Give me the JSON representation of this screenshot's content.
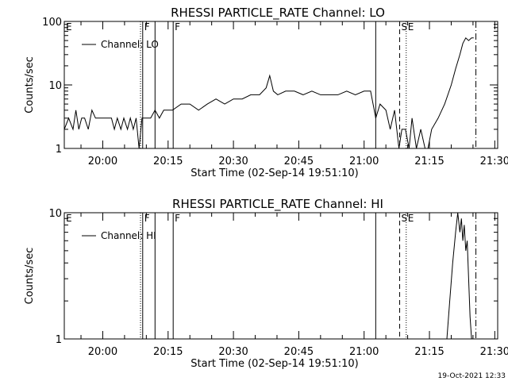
{
  "chart_data": [
    {
      "type": "line",
      "title": "RHESSI PARTICLE_RATE Channel: LO",
      "xlabel": "Start Time (02-Sep-14 19:51:10)",
      "ylabel": "Counts/sec",
      "y_scale": "log",
      "ylim": [
        1,
        100
      ],
      "yticks": [
        1,
        10,
        100
      ],
      "ytick_labels": [
        "1",
        "10",
        "100"
      ],
      "xlim": [
        "19:51:10",
        "21:30:40"
      ],
      "xticks": [
        "20:00",
        "20:15",
        "20:30",
        "20:45",
        "21:00",
        "21:15",
        "21:30"
      ],
      "legend": {
        "entries": [
          "Channel: LO"
        ],
        "position": "top-left"
      },
      "markers": [
        {
          "label": "E",
          "time": "19:51:10",
          "style": "none"
        },
        {
          "label": "",
          "time": "20:08:40",
          "style": "dotted"
        },
        {
          "label": "F",
          "time": "20:09:10",
          "style": "solid"
        },
        {
          "label": "",
          "time": "20:12:00",
          "style": "solid"
        },
        {
          "label": "F",
          "time": "20:16:10",
          "style": "solid"
        },
        {
          "label": "",
          "time": "21:02:40",
          "style": "solid"
        },
        {
          "label": "S",
          "time": "21:08:10",
          "style": "dashed"
        },
        {
          "label": "E",
          "time": "21:09:40",
          "style": "dotted"
        },
        {
          "label": "",
          "time": "21:25:40",
          "style": "dashdot"
        }
      ],
      "series": [
        {
          "name": "Channel: LO",
          "x": [
            "19:51:10",
            "19:52:10",
            "19:53:10",
            "19:53:50",
            "19:54:30",
            "19:55:10",
            "19:55:50",
            "19:56:40",
            "19:57:30",
            "19:58:20",
            "19:59:00",
            "20:00:00",
            "20:01:00",
            "20:02:00",
            "20:02:40",
            "20:03:20",
            "20:04:10",
            "20:04:50",
            "20:05:40",
            "20:06:20",
            "20:07:00",
            "20:07:40",
            "20:08:20",
            "20:09:00",
            "20:10:00",
            "20:11:00",
            "20:12:00",
            "20:13:00",
            "20:14:00",
            "20:15:00",
            "20:16:00",
            "20:18:00",
            "20:20:00",
            "20:22:00",
            "20:24:00",
            "20:26:00",
            "20:28:00",
            "20:30:00",
            "20:32:00",
            "20:34:00",
            "20:36:00",
            "20:37:30",
            "20:38:20",
            "20:39:10",
            "20:40:10",
            "20:42:00",
            "20:44:00",
            "20:46:00",
            "20:48:00",
            "20:50:00",
            "20:52:00",
            "20:54:00",
            "20:56:00",
            "20:58:00",
            "21:00:00",
            "21:01:30",
            "21:02:40",
            "21:03:40",
            "21:05:00",
            "21:06:00",
            "21:07:00",
            "21:08:00",
            "21:08:40",
            "21:09:30",
            "21:10:20",
            "21:11:00",
            "21:12:00",
            "21:13:00",
            "21:14:00",
            "21:14:40",
            "21:15:30",
            "21:17:00",
            "21:18:30",
            "21:20:00",
            "21:21:00",
            "21:22:00",
            "21:22:40",
            "21:23:20",
            "21:24:00",
            "21:24:40",
            "21:25:10"
          ],
          "y": [
            2,
            3,
            2,
            4,
            2,
            3,
            3,
            2,
            4,
            3,
            3,
            3,
            3,
            3,
            2,
            3,
            2,
            3,
            2,
            3,
            2,
            3,
            1,
            3,
            3,
            3,
            4,
            3,
            4,
            4,
            4,
            5,
            5,
            4,
            5,
            6,
            5,
            6,
            6,
            7,
            7,
            9,
            14,
            8,
            7,
            8,
            8,
            7,
            8,
            7,
            7,
            7,
            8,
            7,
            8,
            8,
            3,
            5,
            4,
            2,
            4,
            1,
            2,
            2,
            1,
            3,
            1,
            2,
            1,
            1,
            2,
            3,
            5,
            10,
            18,
            30,
            45,
            55,
            50,
            55,
            55
          ]
        }
      ]
    },
    {
      "type": "line",
      "title": "RHESSI PARTICLE_RATE Channel: HI",
      "xlabel": "Start Time (02-Sep-14 19:51:10)",
      "ylabel": "Counts/sec",
      "y_scale": "log",
      "ylim": [
        1,
        10
      ],
      "yticks": [
        1,
        10
      ],
      "ytick_labels": [
        "1",
        "10"
      ],
      "xlim": [
        "19:51:10",
        "21:30:40"
      ],
      "xticks": [
        "20:00",
        "20:15",
        "20:30",
        "20:45",
        "21:00",
        "21:15",
        "21:30"
      ],
      "legend": {
        "entries": [
          "Channel: HI"
        ],
        "position": "top-left"
      },
      "markers": [
        {
          "label": "E",
          "time": "19:51:10",
          "style": "none"
        },
        {
          "label": "",
          "time": "20:08:40",
          "style": "dotted"
        },
        {
          "label": "F",
          "time": "20:09:10",
          "style": "solid"
        },
        {
          "label": "",
          "time": "20:12:00",
          "style": "solid"
        },
        {
          "label": "F",
          "time": "20:16:10",
          "style": "solid"
        },
        {
          "label": "",
          "time": "21:02:40",
          "style": "solid"
        },
        {
          "label": "S",
          "time": "21:08:10",
          "style": "dashed"
        },
        {
          "label": "E",
          "time": "21:09:40",
          "style": "dotted"
        },
        {
          "label": "",
          "time": "21:25:40",
          "style": "dashdot"
        }
      ],
      "series": [
        {
          "name": "Channel: HI",
          "x": [
            "21:19:00",
            "21:19:40",
            "21:20:20",
            "21:21:00",
            "21:21:30",
            "21:22:00",
            "21:22:20",
            "21:22:40",
            "21:23:00",
            "21:23:20",
            "21:23:40",
            "21:24:00",
            "21:24:20",
            "21:24:40",
            "21:25:00"
          ],
          "y": [
            1,
            2,
            4,
            7,
            10,
            7,
            9,
            6,
            8,
            5,
            6,
            3,
            1.5,
            1,
            1
          ]
        }
      ]
    }
  ],
  "timestamp": "19-Oct-2021 12:33",
  "colors": {
    "background": "#ffffff",
    "foreground": "#000000"
  }
}
